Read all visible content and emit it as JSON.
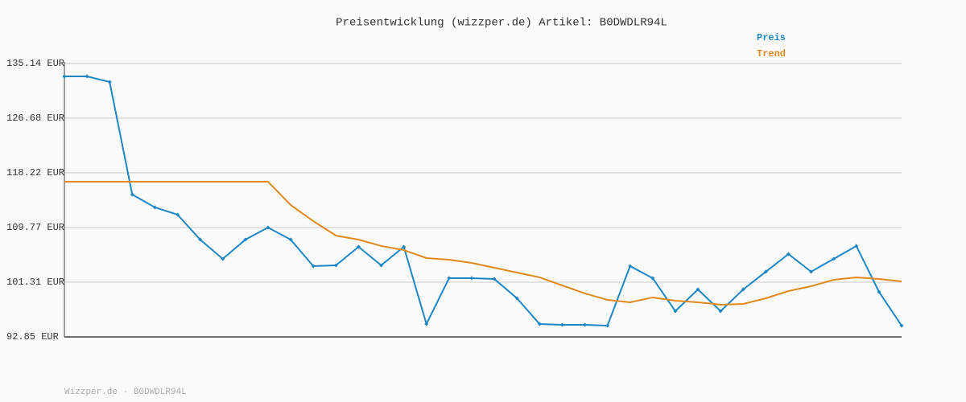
{
  "chart_data": {
    "type": "line",
    "title": "Preisentwicklung (wizzper.de) Artikel: B0DWDLR94L",
    "footer": "Wizzper.de - B0DWDLR94L",
    "categories": [
      null,
      null,
      null,
      null,
      null,
      null,
      null,
      null,
      null,
      null,
      null,
      null,
      null,
      null,
      null,
      null,
      null,
      null,
      null,
      null,
      null,
      null,
      null,
      null,
      null,
      null,
      null,
      null,
      null,
      null,
      null,
      null,
      null,
      null,
      null,
      null,
      null,
      null
    ],
    "series": [
      {
        "name": "Preis",
        "color": "#1f86c4",
        "markers": true,
        "values": [
          133.15,
          133.15,
          132.28,
          114.87,
          112.88,
          111.76,
          107.9,
          104.92,
          107.9,
          109.77,
          107.9,
          103.8,
          103.92,
          106.78,
          103.92,
          106.78,
          94.84,
          101.93,
          101.93,
          101.81,
          98.82,
          94.84,
          94.72,
          94.72,
          94.59,
          103.8,
          101.93,
          96.83,
          100.19,
          96.83,
          100.19,
          102.93,
          105.66,
          102.93,
          104.92,
          106.91,
          99.82,
          94.59
        ]
      },
      {
        "name": "Trend",
        "color": "#e08a1e",
        "markers": false,
        "values": [
          116.86,
          116.86,
          116.86,
          116.86,
          116.86,
          116.86,
          116.86,
          116.86,
          116.86,
          116.86,
          113.25,
          110.76,
          108.52,
          107.9,
          106.91,
          106.28,
          105.04,
          104.79,
          104.29,
          103.55,
          102.8,
          102.06,
          100.81,
          99.57,
          98.57,
          98.2,
          98.95,
          98.45,
          98.2,
          97.83,
          97.95,
          98.82,
          99.94,
          100.69,
          101.68,
          102.06,
          101.81,
          101.43
        ]
      }
    ],
    "ylim": [
      92.85,
      135.14
    ],
    "yticks": [
      {
        "value": 92.85,
        "label": "92.85 EUR"
      },
      {
        "value": 101.31,
        "label": "101.31 EUR"
      },
      {
        "value": 109.77,
        "label": "109.77 EUR"
      },
      {
        "value": 118.22,
        "label": "118.22 EUR"
      },
      {
        "value": 126.68,
        "label": "126.68 EUR"
      },
      {
        "value": 135.14,
        "label": "135.14 EUR"
      }
    ],
    "grid": true
  }
}
